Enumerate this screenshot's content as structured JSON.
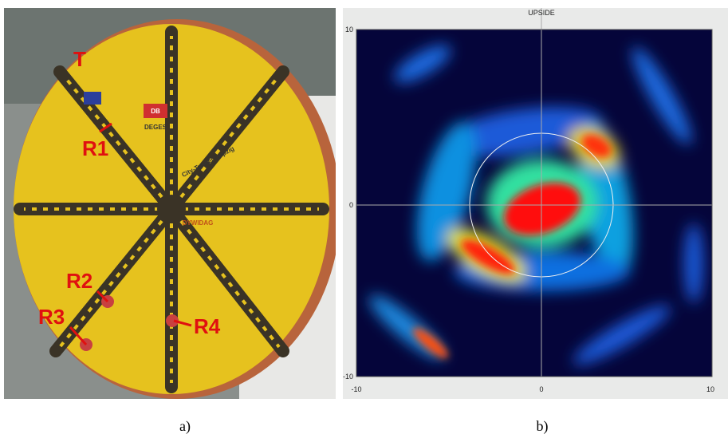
{
  "photo": {
    "labels": [
      "T",
      "R1",
      "R2",
      "R3",
      "R4"
    ],
    "signs": [
      "DB",
      "DEGES",
      "City-Tunnel Leipzig",
      "DYWIDAG"
    ]
  },
  "map": {
    "title": "UPSIDE",
    "x_ticks": [
      "-10",
      "0",
      "10"
    ],
    "y_ticks": [
      "10",
      "0",
      "-10"
    ]
  },
  "captions": [
    "a)",
    "b)"
  ]
}
